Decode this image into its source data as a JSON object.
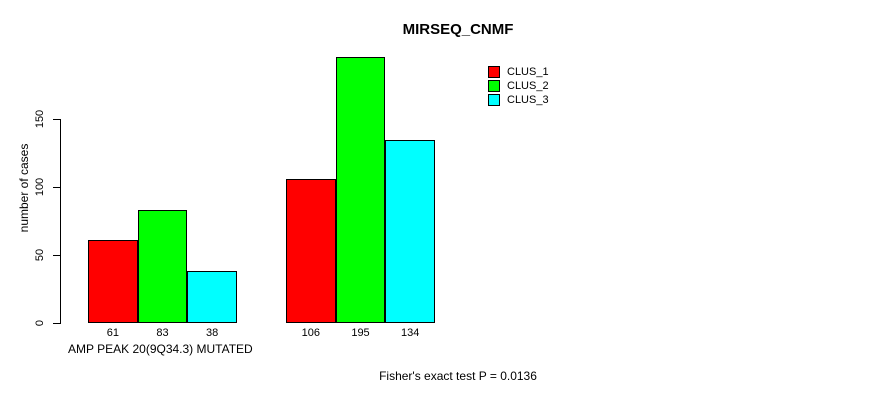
{
  "page": {
    "background": "#ffffff",
    "text_color": "#000000"
  },
  "chart_data": {
    "type": "bar",
    "title": "MIRSEQ_CNMF",
    "ylabel": "number of cases",
    "xlabel": "",
    "yticks": [
      0,
      50,
      100,
      150
    ],
    "ylim": [
      0,
      150
    ],
    "grid": false,
    "legend_position": "top-right",
    "categories": [
      "AMP PEAK 20(9Q34.3) MUTATED",
      ""
    ],
    "series": [
      {
        "name": "CLUS_1",
        "color": "#ff0000",
        "values": [
          61,
          106
        ]
      },
      {
        "name": "CLUS_2",
        "color": "#00ff00",
        "values": [
          83,
          195
        ]
      },
      {
        "name": "CLUS_3",
        "color": "#00ffff",
        "values": [
          38,
          134
        ]
      }
    ],
    "bar_value_labels": [
      61,
      83,
      38,
      106,
      195,
      134
    ],
    "footnote": "Fisher's exact test P = 0.0136"
  }
}
